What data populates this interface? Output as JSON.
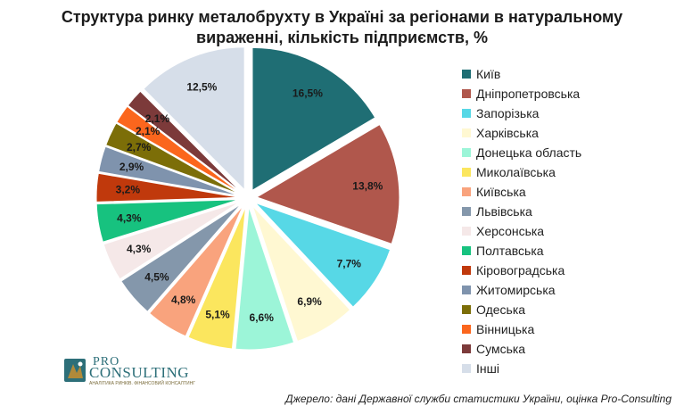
{
  "chart_data": {
    "type": "pie",
    "title_lines": [
      "Структура ринку металобрухту в Україні за регіонами в натуральному",
      "вираженні, кількість підприємств, %"
    ],
    "unit": "%",
    "exploded": true,
    "legend_position": "right",
    "slices": [
      {
        "label": "Київ",
        "value": 16.5,
        "value_label": "16,5%",
        "color": "#1f6e74"
      },
      {
        "label": "Дніпропетровська",
        "value": 13.8,
        "value_label": "13,8%",
        "color": "#b0574c"
      },
      {
        "label": "Запорізька",
        "value": 7.7,
        "value_label": "7,7%",
        "color": "#57d8e6"
      },
      {
        "label": "Харківська",
        "value": 6.9,
        "value_label": "6,9%",
        "color": "#fff8d2"
      },
      {
        "label": "Донецька область",
        "value": 6.6,
        "value_label": "6,6%",
        "color": "#9cf5d8"
      },
      {
        "label": "Миколаївська",
        "value": 5.1,
        "value_label": "5,1%",
        "color": "#fbe65e"
      },
      {
        "label": "Київська",
        "value": 4.8,
        "value_label": "4,8%",
        "color": "#f9a37d"
      },
      {
        "label": "Львівська",
        "value": 4.5,
        "value_label": "4,5%",
        "color": "#8497ab"
      },
      {
        "label": "Херсонська",
        "value": 4.3,
        "value_label": "4,3%",
        "color": "#f5e8e8"
      },
      {
        "label": "Полтавська",
        "value": 4.3,
        "value_label": "4,3%",
        "color": "#17c27f"
      },
      {
        "label": "Кіровоградська",
        "value": 3.2,
        "value_label": "3,2%",
        "color": "#c0390c"
      },
      {
        "label": "Житомирська",
        "value": 2.9,
        "value_label": "2,9%",
        "color": "#7f93ad"
      },
      {
        "label": "Одеська",
        "value": 2.7,
        "value_label": "2,7%",
        "color": "#7c6e08"
      },
      {
        "label": "Вінницька",
        "value": 2.1,
        "value_label": "2,1%",
        "color": "#fb661d"
      },
      {
        "label": "Сумська",
        "value": 2.1,
        "value_label": "2,1%",
        "color": "#7c3a3a"
      },
      {
        "label": "Інші",
        "value": 12.5,
        "value_label": "12,5%",
        "color": "#d6dee9"
      }
    ]
  },
  "source": "Джерело: дані Державної служби статистики України, оцінка Pro-Consulting",
  "logo": {
    "pro": "PRO",
    "consulting": "CONSULTING",
    "tagline": "АНАЛІТИКА РИНКІВ. ФІНАНСОВИЙ КОНСАЛТИНГ"
  }
}
